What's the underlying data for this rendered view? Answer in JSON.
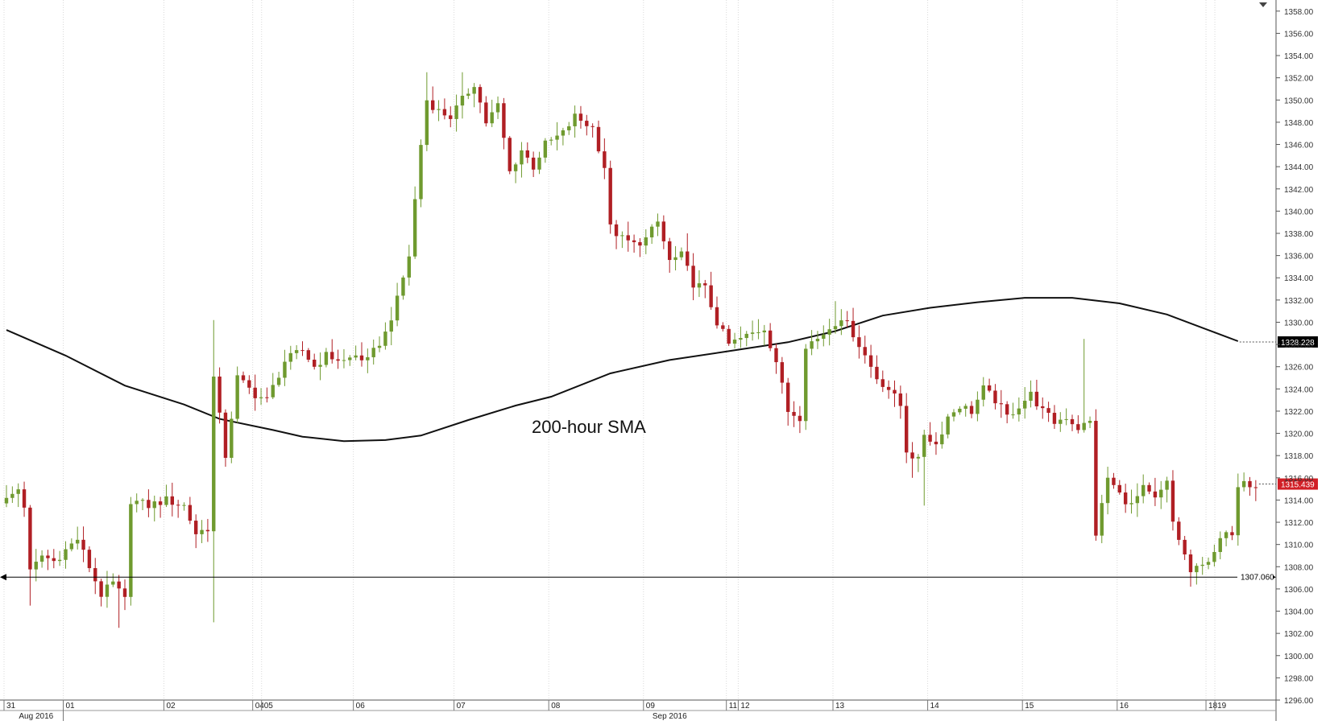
{
  "chart_data": {
    "type": "candlestick",
    "title": "",
    "annotation": "200-hour SMA",
    "colors": {
      "up": "#6f9a2f",
      "down": "#b01f24",
      "sma": "#111111",
      "support": "#000000",
      "last_price_label_bg": "#d11f26",
      "sma_label_bg": "#000000"
    },
    "y_axis": {
      "min": 1296.0,
      "max": 1359.0,
      "ticks": [
        "1358.00",
        "1356.00",
        "1354.00",
        "1352.00",
        "1350.00",
        "1348.00",
        "1346.00",
        "1344.00",
        "1342.00",
        "1340.00",
        "1338.00",
        "1336.00",
        "1334.00",
        "1332.00",
        "1330.00",
        "1328.00",
        "1326.00",
        "1324.00",
        "1322.00",
        "1320.00",
        "1318.00",
        "1316.00",
        "1314.00",
        "1312.00",
        "1310.00",
        "1308.00",
        "1306.00",
        "1304.00",
        "1302.00",
        "1300.00",
        "1298.00",
        "1296.00"
      ]
    },
    "x_axis": {
      "day_labels": [
        {
          "label": "31",
          "index": 0
        },
        {
          "label": "01",
          "index": 10
        },
        {
          "label": "02",
          "index": 27
        },
        {
          "label": "04",
          "index": 42
        },
        {
          "label": "05",
          "index": 43.5
        },
        {
          "label": "06",
          "index": 59
        },
        {
          "label": "07",
          "index": 76
        },
        {
          "label": "08",
          "index": 92
        },
        {
          "label": "09",
          "index": 108
        },
        {
          "label": "11",
          "index": 122
        },
        {
          "label": "12",
          "index": 124
        },
        {
          "label": "13",
          "index": 140
        },
        {
          "label": "14",
          "index": 156
        },
        {
          "label": "15",
          "index": 172
        },
        {
          "label": "16",
          "index": 188
        },
        {
          "label": "18",
          "index": 203
        },
        {
          "label": "19",
          "index": 204.5
        }
      ],
      "month_labels": [
        {
          "label": "Aug 2016",
          "index": 4
        },
        {
          "label": "Sep 2016",
          "index": 111
        }
      ]
    },
    "horizontal_levels": [
      {
        "name": "support",
        "value": 1307.06,
        "label": "1307.060"
      }
    ],
    "price_labels": [
      {
        "name": "sma-last",
        "value": 1328.228,
        "label": "1328.228"
      },
      {
        "name": "last-price",
        "value": 1315.439,
        "label": "1315.439"
      }
    ],
    "sma_200h": [
      {
        "i": 0,
        "v": 1329.3
      },
      {
        "i": 10,
        "v": 1327.0
      },
      {
        "i": 20,
        "v": 1324.3
      },
      {
        "i": 30,
        "v": 1322.6
      },
      {
        "i": 36,
        "v": 1321.3
      },
      {
        "i": 45,
        "v": 1320.3
      },
      {
        "i": 50,
        "v": 1319.7
      },
      {
        "i": 57,
        "v": 1319.3
      },
      {
        "i": 64,
        "v": 1319.4
      },
      {
        "i": 70,
        "v": 1319.8
      },
      {
        "i": 78,
        "v": 1321.2
      },
      {
        "i": 86,
        "v": 1322.5
      },
      {
        "i": 92,
        "v": 1323.3
      },
      {
        "i": 102,
        "v": 1325.4
      },
      {
        "i": 112,
        "v": 1326.6
      },
      {
        "i": 122,
        "v": 1327.4
      },
      {
        "i": 132,
        "v": 1328.2
      },
      {
        "i": 140,
        "v": 1329.2
      },
      {
        "i": 148,
        "v": 1330.6
      },
      {
        "i": 156,
        "v": 1331.3
      },
      {
        "i": 164,
        "v": 1331.8
      },
      {
        "i": 172,
        "v": 1332.2
      },
      {
        "i": 180,
        "v": 1332.2
      },
      {
        "i": 188,
        "v": 1331.7
      },
      {
        "i": 196,
        "v": 1330.7
      },
      {
        "i": 202,
        "v": 1329.5
      },
      {
        "i": 208,
        "v": 1328.3
      }
    ],
    "close_path": [
      {
        "i": 0,
        "v": 1314.0
      },
      {
        "i": 2,
        "v": 1315.0
      },
      {
        "i": 3,
        "v": 1313.5
      },
      {
        "i": 4,
        "v": 1307.5
      },
      {
        "i": 6,
        "v": 1309.0
      },
      {
        "i": 8,
        "v": 1308.5
      },
      {
        "i": 10,
        "v": 1309.5
      },
      {
        "i": 12,
        "v": 1310.5
      },
      {
        "i": 14,
        "v": 1308.0
      },
      {
        "i": 16,
        "v": 1305.5
      },
      {
        "i": 18,
        "v": 1306.5
      },
      {
        "i": 20,
        "v": 1305.0
      },
      {
        "i": 21,
        "v": 1314.0
      },
      {
        "i": 24,
        "v": 1313.5
      },
      {
        "i": 27,
        "v": 1314.0
      },
      {
        "i": 30,
        "v": 1313.5
      },
      {
        "i": 32,
        "v": 1311.0
      },
      {
        "i": 34,
        "v": 1311.5
      },
      {
        "i": 35,
        "v": 1325.0
      },
      {
        "i": 37,
        "v": 1318.0
      },
      {
        "i": 39,
        "v": 1325.0
      },
      {
        "i": 42,
        "v": 1323.5
      },
      {
        "i": 44,
        "v": 1323.0
      },
      {
        "i": 47,
        "v": 1326.5
      },
      {
        "i": 50,
        "v": 1327.5
      },
      {
        "i": 52,
        "v": 1326.0
      },
      {
        "i": 54,
        "v": 1327.0
      },
      {
        "i": 57,
        "v": 1326.5
      },
      {
        "i": 59,
        "v": 1327.0
      },
      {
        "i": 61,
        "v": 1326.5
      },
      {
        "i": 64,
        "v": 1329.0
      },
      {
        "i": 66,
        "v": 1332.0
      },
      {
        "i": 68,
        "v": 1336.0
      },
      {
        "i": 70,
        "v": 1346.0
      },
      {
        "i": 71,
        "v": 1350.0
      },
      {
        "i": 73,
        "v": 1349.0
      },
      {
        "i": 75,
        "v": 1348.5
      },
      {
        "i": 77,
        "v": 1350.0
      },
      {
        "i": 79,
        "v": 1351.5
      },
      {
        "i": 81,
        "v": 1348.0
      },
      {
        "i": 83,
        "v": 1349.5
      },
      {
        "i": 85,
        "v": 1343.5
      },
      {
        "i": 87,
        "v": 1345.5
      },
      {
        "i": 89,
        "v": 1344.0
      },
      {
        "i": 91,
        "v": 1346.0
      },
      {
        "i": 94,
        "v": 1347.0
      },
      {
        "i": 96,
        "v": 1348.5
      },
      {
        "i": 99,
        "v": 1347.5
      },
      {
        "i": 101,
        "v": 1344.0
      },
      {
        "i": 102,
        "v": 1338.5
      },
      {
        "i": 104,
        "v": 1337.5
      },
      {
        "i": 106,
        "v": 1337.0
      },
      {
        "i": 108,
        "v": 1337.5
      },
      {
        "i": 110,
        "v": 1339.0
      },
      {
        "i": 112,
        "v": 1335.5
      },
      {
        "i": 114,
        "v": 1336.0
      },
      {
        "i": 116,
        "v": 1333.5
      },
      {
        "i": 118,
        "v": 1333.0
      },
      {
        "i": 120,
        "v": 1330.0
      },
      {
        "i": 122,
        "v": 1328.0
      },
      {
        "i": 124,
        "v": 1328.5
      },
      {
        "i": 126,
        "v": 1329.0
      },
      {
        "i": 128,
        "v": 1329.5
      },
      {
        "i": 130,
        "v": 1326.5
      },
      {
        "i": 132,
        "v": 1322.0
      },
      {
        "i": 134,
        "v": 1321.5
      },
      {
        "i": 135,
        "v": 1328.0
      },
      {
        "i": 137,
        "v": 1328.5
      },
      {
        "i": 139,
        "v": 1329.5
      },
      {
        "i": 141,
        "v": 1330.5
      },
      {
        "i": 143,
        "v": 1329.0
      },
      {
        "i": 145,
        "v": 1327.0
      },
      {
        "i": 147,
        "v": 1325.0
      },
      {
        "i": 149,
        "v": 1324.0
      },
      {
        "i": 151,
        "v": 1322.5
      },
      {
        "i": 152,
        "v": 1318.5
      },
      {
        "i": 154,
        "v": 1317.5
      },
      {
        "i": 155,
        "v": 1320.0
      },
      {
        "i": 157,
        "v": 1319.0
      },
      {
        "i": 159,
        "v": 1321.5
      },
      {
        "i": 161,
        "v": 1322.5
      },
      {
        "i": 163,
        "v": 1322.0
      },
      {
        "i": 165,
        "v": 1324.0
      },
      {
        "i": 167,
        "v": 1323.0
      },
      {
        "i": 169,
        "v": 1321.5
      },
      {
        "i": 171,
        "v": 1322.5
      },
      {
        "i": 173,
        "v": 1323.5
      },
      {
        "i": 175,
        "v": 1322.0
      },
      {
        "i": 177,
        "v": 1321.0
      },
      {
        "i": 179,
        "v": 1321.5
      },
      {
        "i": 181,
        "v": 1320.5
      },
      {
        "i": 183,
        "v": 1321.0
      },
      {
        "i": 184,
        "v": 1311.0
      },
      {
        "i": 186,
        "v": 1316.0
      },
      {
        "i": 188,
        "v": 1314.5
      },
      {
        "i": 190,
        "v": 1313.5
      },
      {
        "i": 192,
        "v": 1315.0
      },
      {
        "i": 194,
        "v": 1314.0
      },
      {
        "i": 196,
        "v": 1315.5
      },
      {
        "i": 197,
        "v": 1312.0
      },
      {
        "i": 199,
        "v": 1309.0
      },
      {
        "i": 200,
        "v": 1307.5
      },
      {
        "i": 202,
        "v": 1308.0
      },
      {
        "i": 204,
        "v": 1309.5
      },
      {
        "i": 206,
        "v": 1311.0
      },
      {
        "i": 207,
        "v": 1310.5
      },
      {
        "i": 208,
        "v": 1315.5
      },
      {
        "i": 209,
        "v": 1316.0
      },
      {
        "i": 210,
        "v": 1315.5
      },
      {
        "i": 211,
        "v": 1315.439
      }
    ],
    "wick_extremes": [
      {
        "i": 4,
        "v": 1304.5
      },
      {
        "i": 19,
        "v": 1302.5
      },
      {
        "i": 35,
        "v": 1303.0
      },
      {
        "i": 35,
        "v": 1330.2
      },
      {
        "i": 71,
        "v": 1352.5
      },
      {
        "i": 77,
        "v": 1352.5
      },
      {
        "i": 115,
        "v": 1338.0
      },
      {
        "i": 140,
        "v": 1331.9
      },
      {
        "i": 153,
        "v": 1316.0
      },
      {
        "i": 155,
        "v": 1313.5
      },
      {
        "i": 182,
        "v": 1328.5
      },
      {
        "i": 200,
        "v": 1306.2
      }
    ]
  }
}
